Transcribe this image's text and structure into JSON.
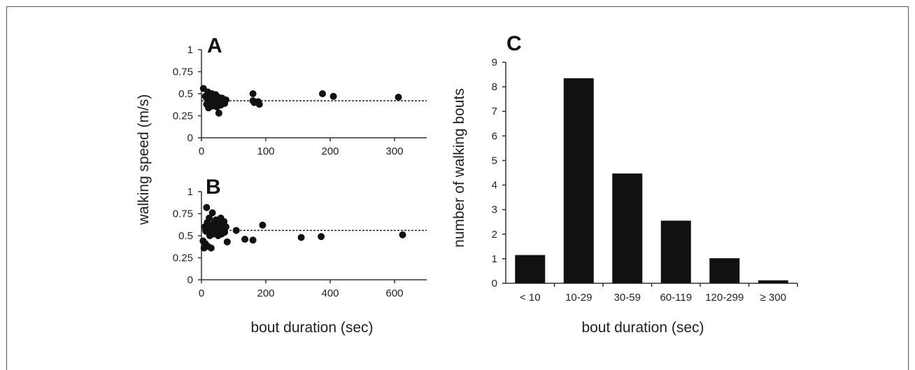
{
  "chart_data": [
    {
      "panel_label": "A",
      "type": "scatter",
      "ylabel": "walking speed (m/s)",
      "xlim": [
        0,
        350
      ],
      "ylim": [
        0,
        1
      ],
      "xticks": [
        "0",
        "100",
        "200",
        "300"
      ],
      "yticks": [
        "0",
        "0.25",
        "0.5",
        "0.75",
        "1"
      ],
      "mean_line": 0.42,
      "points": [
        [
          3,
          0.56
        ],
        [
          6,
          0.47
        ],
        [
          8,
          0.38
        ],
        [
          9,
          0.44
        ],
        [
          10,
          0.52
        ],
        [
          11,
          0.34
        ],
        [
          12,
          0.42
        ],
        [
          13,
          0.48
        ],
        [
          14,
          0.39
        ],
        [
          15,
          0.45
        ],
        [
          16,
          0.5
        ],
        [
          17,
          0.36
        ],
        [
          18,
          0.43
        ],
        [
          19,
          0.47
        ],
        [
          20,
          0.41
        ],
        [
          21,
          0.38
        ],
        [
          22,
          0.49
        ],
        [
          23,
          0.44
        ],
        [
          24,
          0.35
        ],
        [
          25,
          0.42
        ],
        [
          26,
          0.46
        ],
        [
          27,
          0.28
        ],
        [
          28,
          0.4
        ],
        [
          29,
          0.43
        ],
        [
          30,
          0.37
        ],
        [
          32,
          0.45
        ],
        [
          34,
          0.41
        ],
        [
          36,
          0.39
        ],
        [
          38,
          0.43
        ],
        [
          80,
          0.5
        ],
        [
          80,
          0.42
        ],
        [
          82,
          0.4
        ],
        [
          88,
          0.41
        ],
        [
          90,
          0.38
        ],
        [
          188,
          0.5
        ],
        [
          205,
          0.47
        ],
        [
          306,
          0.46
        ]
      ]
    },
    {
      "panel_label": "B",
      "type": "scatter",
      "xlim": [
        0,
        700
      ],
      "ylim": [
        0,
        1
      ],
      "xticks": [
        "0",
        "200",
        "400",
        "600"
      ],
      "yticks": [
        "0",
        "0.25",
        "0.5",
        "0.75",
        "1"
      ],
      "mean_line": 0.56,
      "points": [
        [
          5,
          0.44
        ],
        [
          8,
          0.36
        ],
        [
          10,
          0.6
        ],
        [
          12,
          0.41
        ],
        [
          14,
          0.55
        ],
        [
          16,
          0.82
        ],
        [
          18,
          0.65
        ],
        [
          20,
          0.38
        ],
        [
          22,
          0.58
        ],
        [
          24,
          0.7
        ],
        [
          26,
          0.5
        ],
        [
          28,
          0.62
        ],
        [
          30,
          0.36
        ],
        [
          32,
          0.56
        ],
        [
          34,
          0.76
        ],
        [
          36,
          0.6
        ],
        [
          38,
          0.52
        ],
        [
          40,
          0.65
        ],
        [
          42,
          0.58
        ],
        [
          45,
          0.68
        ],
        [
          48,
          0.54
        ],
        [
          50,
          0.6
        ],
        [
          52,
          0.5
        ],
        [
          55,
          0.63
        ],
        [
          58,
          0.57
        ],
        [
          60,
          0.7
        ],
        [
          63,
          0.52
        ],
        [
          66,
          0.6
        ],
        [
          70,
          0.66
        ],
        [
          72,
          0.54
        ],
        [
          76,
          0.6
        ],
        [
          80,
          0.43
        ],
        [
          108,
          0.56
        ],
        [
          135,
          0.46
        ],
        [
          160,
          0.45
        ],
        [
          190,
          0.62
        ],
        [
          310,
          0.48
        ],
        [
          372,
          0.49
        ],
        [
          625,
          0.51
        ]
      ]
    },
    {
      "panel_label": "C",
      "type": "bar",
      "xlabel": "bout duration (sec)",
      "ylabel": "number of walking bouts",
      "ylim": [
        0,
        9
      ],
      "yticks": [
        "0",
        "1",
        "2",
        "3",
        "4",
        "5",
        "6",
        "7",
        "8",
        "9"
      ],
      "categories": [
        "< 10",
        "10-29",
        "30-59",
        "60-119",
        "120-299",
        "≥ 300"
      ],
      "values": [
        1.15,
        8.35,
        4.47,
        2.55,
        1.02,
        0.12
      ]
    }
  ],
  "labels": {
    "ab_xlabel": "bout duration (sec)"
  },
  "colors": {
    "ink": "#111111",
    "axis": "#333333"
  }
}
